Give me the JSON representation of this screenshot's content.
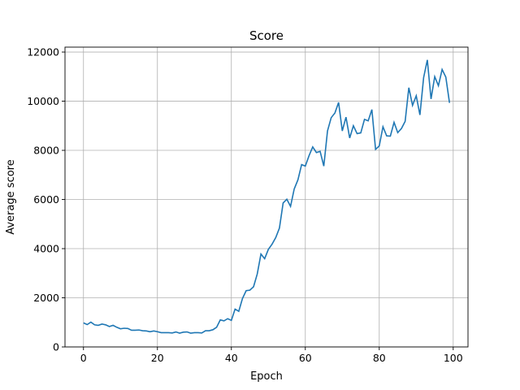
{
  "chart_data": {
    "type": "line",
    "title": "Score",
    "xlabel": "Epoch",
    "ylabel": "Average score",
    "xlim": [
      -5,
      104
    ],
    "ylim": [
      0,
      12200
    ],
    "xticks": [
      0,
      20,
      40,
      60,
      80,
      100
    ],
    "yticks": [
      0,
      2000,
      4000,
      6000,
      8000,
      10000,
      12000
    ],
    "grid": true,
    "line_color": "#1f77b4",
    "series": [
      {
        "x": [
          0,
          1,
          2,
          3,
          4,
          5,
          6,
          7,
          8,
          9,
          10,
          11,
          12,
          13,
          14,
          15,
          16,
          17,
          18,
          19,
          20,
          21,
          22,
          23,
          24,
          25,
          26,
          27,
          28,
          29,
          30,
          31,
          32,
          33,
          34,
          35,
          36,
          37,
          38,
          39,
          40,
          41,
          42,
          43,
          44,
          45,
          46,
          47,
          48,
          49,
          50,
          51,
          52,
          53,
          54,
          55,
          56,
          57,
          58,
          59,
          60,
          61,
          62,
          63,
          64,
          65,
          66,
          67,
          68,
          69,
          70,
          71,
          72,
          73,
          74,
          75,
          76,
          77,
          78,
          79,
          80,
          81,
          82,
          83,
          84,
          85,
          86,
          87,
          88,
          89,
          90,
          91,
          92,
          93,
          94,
          95,
          96,
          97,
          98,
          99
        ],
        "values": [
          980,
          910,
          1010,
          900,
          880,
          930,
          900,
          830,
          880,
          800,
          740,
          760,
          750,
          680,
          680,
          690,
          660,
          650,
          620,
          650,
          620,
          580,
          580,
          580,
          570,
          610,
          560,
          600,
          610,
          560,
          580,
          580,
          570,
          660,
          660,
          700,
          800,
          1100,
          1060,
          1150,
          1080,
          1540,
          1450,
          1970,
          2290,
          2310,
          2450,
          2970,
          3780,
          3590,
          3970,
          4180,
          4450,
          4840,
          5860,
          6010,
          5720,
          6430,
          6800,
          7420,
          7360,
          7780,
          8140,
          7910,
          7960,
          7360,
          8790,
          9330,
          9520,
          9950,
          8790,
          9350,
          8500,
          9000,
          8680,
          8710,
          9260,
          9200,
          9660,
          8040,
          8180,
          8960,
          8590,
          8580,
          9140,
          8720,
          8890,
          9180,
          10550,
          9830,
          10220,
          9440,
          10960,
          11680,
          10090,
          11000,
          10630,
          11290,
          10980,
          9930
        ]
      }
    ]
  }
}
